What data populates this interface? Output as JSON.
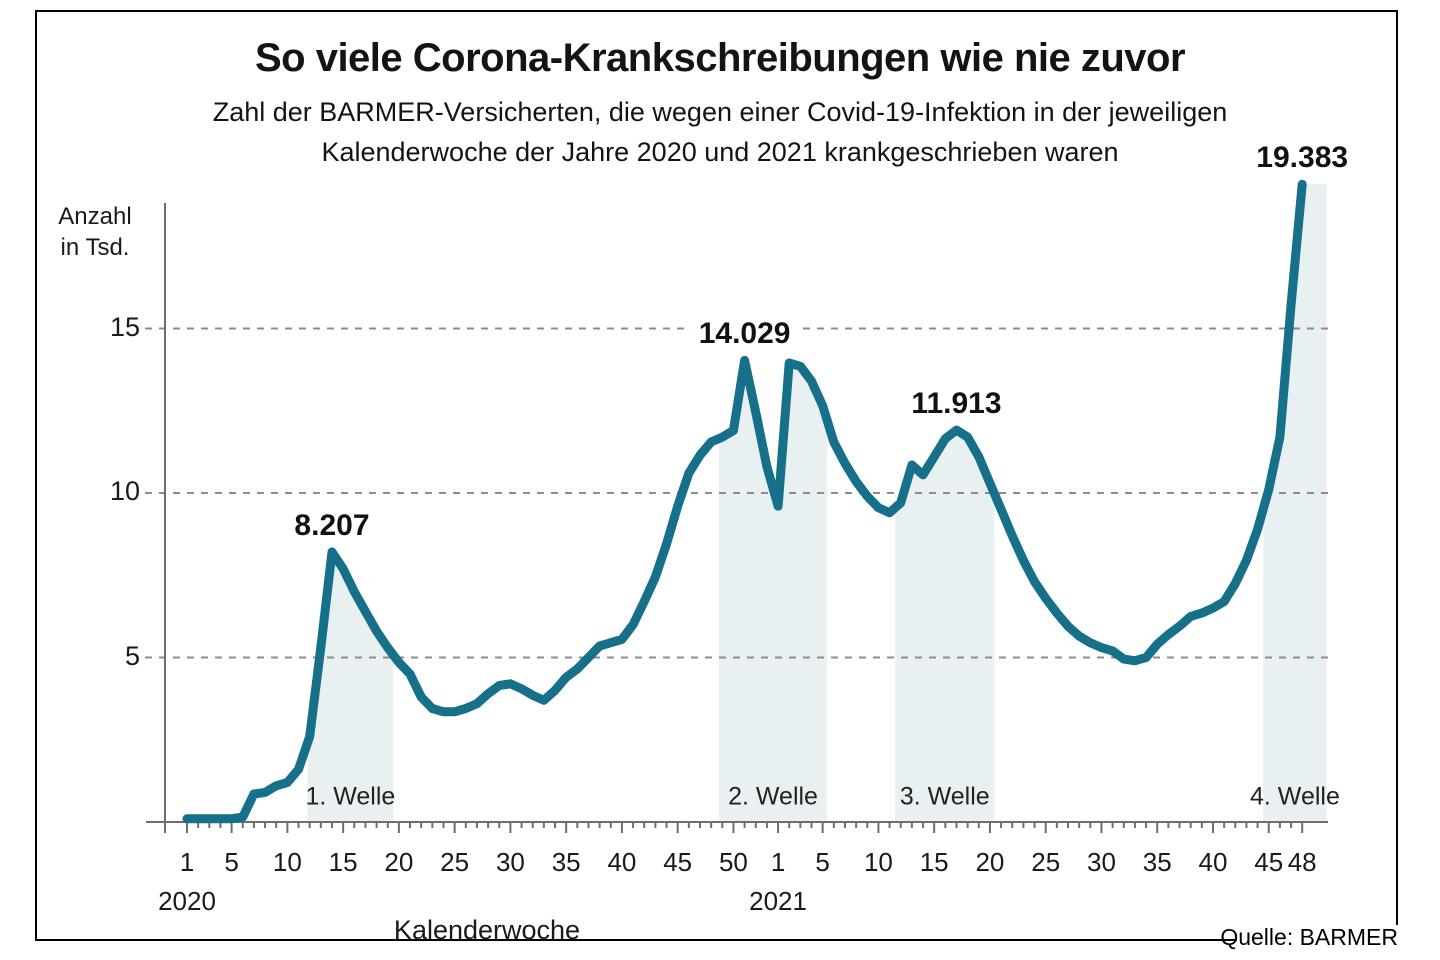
{
  "header": {
    "title": "So viele Corona-Krankschreibungen wie nie zuvor",
    "subtitle_line1": "Zahl der BARMER-Versicherten, die wegen einer Covid-19-Infektion in der jeweiligen",
    "subtitle_line2": "Kalenderwoche der Jahre 2020 und 2021 krankgeschrieben waren"
  },
  "footer": {
    "source": "Quelle: BARMER"
  },
  "chart_data": {
    "type": "line",
    "title": "So viele Corona-Krankschreibungen wie nie zuvor",
    "xlabel": "Kalenderwoche",
    "ylabel_line1": "Anzahl",
    "ylabel_line2": "in Tsd.",
    "ylim": [
      0,
      20
    ],
    "grid_values": [
      5,
      10,
      15
    ],
    "y_tick_labels": [
      "15",
      "10",
      "5"
    ],
    "line_color": "#16708a",
    "band_color": "#e9f0f2",
    "axis_color": "#6e6e6e",
    "grid_color": "#8c8c8c",
    "years": [
      {
        "year": "2020",
        "tick_weeks": [
          1,
          5,
          10,
          15,
          20,
          25,
          30,
          35,
          40,
          45,
          50
        ],
        "values": [
          0.1,
          0.1,
          0.1,
          0.1,
          0.1,
          0.15,
          0.85,
          0.9,
          1.1,
          1.2,
          1.6,
          2.6,
          5.3,
          8.207,
          7.7,
          7.0,
          6.4,
          5.8,
          5.3,
          4.85,
          4.5,
          3.8,
          3.45,
          3.35,
          3.35,
          3.45,
          3.6,
          3.9,
          4.15,
          4.2,
          4.05,
          3.85,
          3.7,
          4.0,
          4.4,
          4.65,
          5.0,
          5.35,
          5.45,
          5.55,
          6.0,
          6.7,
          7.45,
          8.45,
          9.6,
          10.6,
          11.15,
          11.55,
          11.7,
          11.9,
          14.029,
          12.45,
          10.8
        ]
      },
      {
        "year": "2021",
        "tick_weeks": [
          1,
          5,
          10,
          15,
          20,
          25,
          30,
          35,
          40,
          45,
          48
        ],
        "values": [
          9.6,
          13.95,
          13.85,
          13.4,
          12.65,
          11.55,
          10.9,
          10.35,
          9.9,
          9.55,
          9.4,
          9.7,
          10.85,
          10.55,
          11.1,
          11.65,
          11.913,
          11.7,
          11.1,
          10.3,
          9.5,
          8.7,
          7.95,
          7.3,
          6.8,
          6.35,
          5.95,
          5.65,
          5.45,
          5.3,
          5.2,
          4.95,
          4.9,
          5.0,
          5.4,
          5.7,
          5.95,
          6.25,
          6.35,
          6.5,
          6.7,
          7.25,
          7.95,
          8.9,
          10.1,
          11.7,
          15.7,
          19.383
        ]
      }
    ],
    "annotations": [
      {
        "label": "8.207",
        "week_index": 13,
        "value": 8.207,
        "halo": false
      },
      {
        "label": "14.029",
        "week_index": 50,
        "value": 14.029,
        "halo": true
      },
      {
        "label": "11.913",
        "week_index": 69,
        "value": 11.913,
        "halo": false
      },
      {
        "label": "19.383",
        "week_index": 100,
        "value": 19.383,
        "halo": false
      }
    ],
    "waves": [
      {
        "label": "1. Welle",
        "start": 11.8,
        "end": 19.5,
        "extend_right": false
      },
      {
        "label": "2. Welle",
        "start": 48.7,
        "end": 58.4,
        "extend_right": false
      },
      {
        "label": "3. Welle",
        "start": 64.5,
        "end": 73.4,
        "extend_right": false
      },
      {
        "label": "4. Welle",
        "start": 97.5,
        "end": 103.2,
        "extend_right": true
      }
    ]
  }
}
